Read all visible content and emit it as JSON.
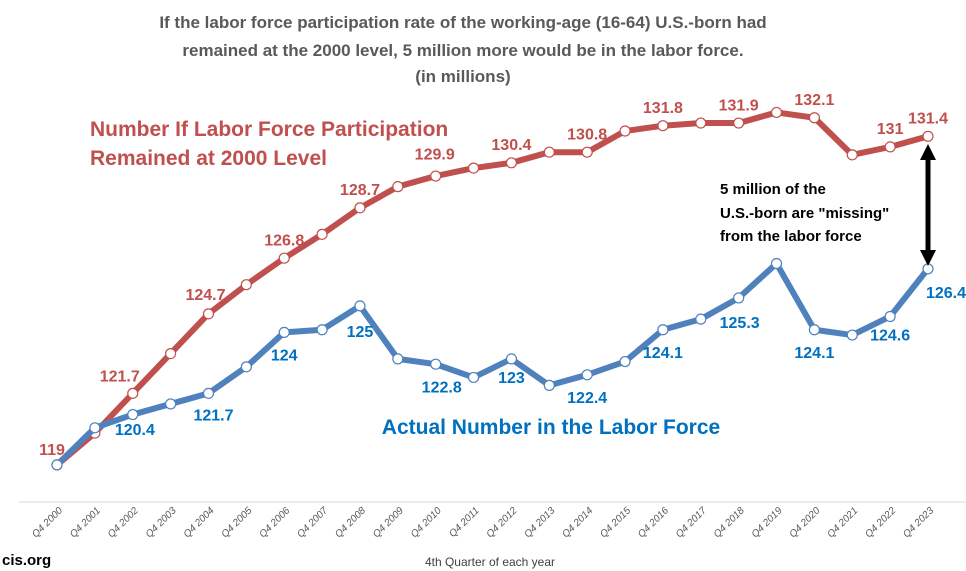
{
  "chart_data": {
    "type": "line",
    "title_lines": [
      "If the labor force participation rate of the working-age (16-64) U.S.-born had",
      "remained at the 2000 level, 5 million more would be in the labor force.",
      "(in millions)"
    ],
    "xlabel": "4th Quarter of each year",
    "ylabel": "",
    "ylim": [
      117.6,
      133.5
    ],
    "grid": false,
    "categories": [
      "Q4 2000",
      "Q4 2001",
      "Q4 2002",
      "Q4 2003",
      "Q4 2004",
      "Q4 2005",
      "Q4 2006",
      "Q4 2007",
      "Q4 2008",
      "Q4 2009",
      "Q4 2010",
      "Q4 2011",
      "Q4 2012",
      "Q4 2013",
      "Q4 2014",
      "Q4 2015",
      "Q4 2016",
      "Q4 2017",
      "Q4 2018",
      "Q4 2019",
      "Q4 2020",
      "Q4 2021",
      "Q4 2022",
      "Q4 2023"
    ],
    "series": [
      {
        "name_lines": [
          "Number If Labor Force Participation",
          "Remained at 2000 Level"
        ],
        "color": "#c0504d",
        "label_color": "#c0504d",
        "values": [
          119,
          120.2,
          121.7,
          123.2,
          124.7,
          125.8,
          126.8,
          127.7,
          128.7,
          129.5,
          129.9,
          130.2,
          130.4,
          130.8,
          130.8,
          131.6,
          131.8,
          131.9,
          131.9,
          132.3,
          132.1,
          130.7,
          131,
          131.4
        ],
        "data_labels": {
          "0": "119",
          "2": "121.7",
          "4": "124.7",
          "6": "126.8",
          "8": "128.7",
          "10": "129.9",
          "12": "130.4",
          "14": "130.8",
          "16": "131.8",
          "18": "131.9",
          "20": "132.1",
          "22": "131",
          "23": "131.4"
        }
      },
      {
        "name_lines": [
          "Actual Number in the Labor Force"
        ],
        "color": "#4f81bd",
        "label_color": "#0070c0",
        "values": [
          119,
          120.4,
          120.9,
          121.3,
          121.7,
          122.7,
          124,
          124.1,
          125,
          123,
          122.8,
          122.3,
          123,
          122,
          122.4,
          122.9,
          124.1,
          124.5,
          125.3,
          126.6,
          124.1,
          123.9,
          124.6,
          126.4
        ],
        "data_labels": {
          "1": "120.4",
          "4": "121.7",
          "6": "124",
          "8": "125",
          "10": "122.8",
          "12": "123",
          "14": "122.4",
          "16": "124.1",
          "18": "125.3",
          "20": "124.1",
          "22": "124.6",
          "23": "126.4"
        }
      }
    ],
    "annotation": {
      "lines": [
        "5 million of the",
        "U.S.-born are \"missing\"",
        "from the labor force"
      ],
      "arrow": "double-headed between series at Q4 2023"
    }
  },
  "source": "cis.org"
}
